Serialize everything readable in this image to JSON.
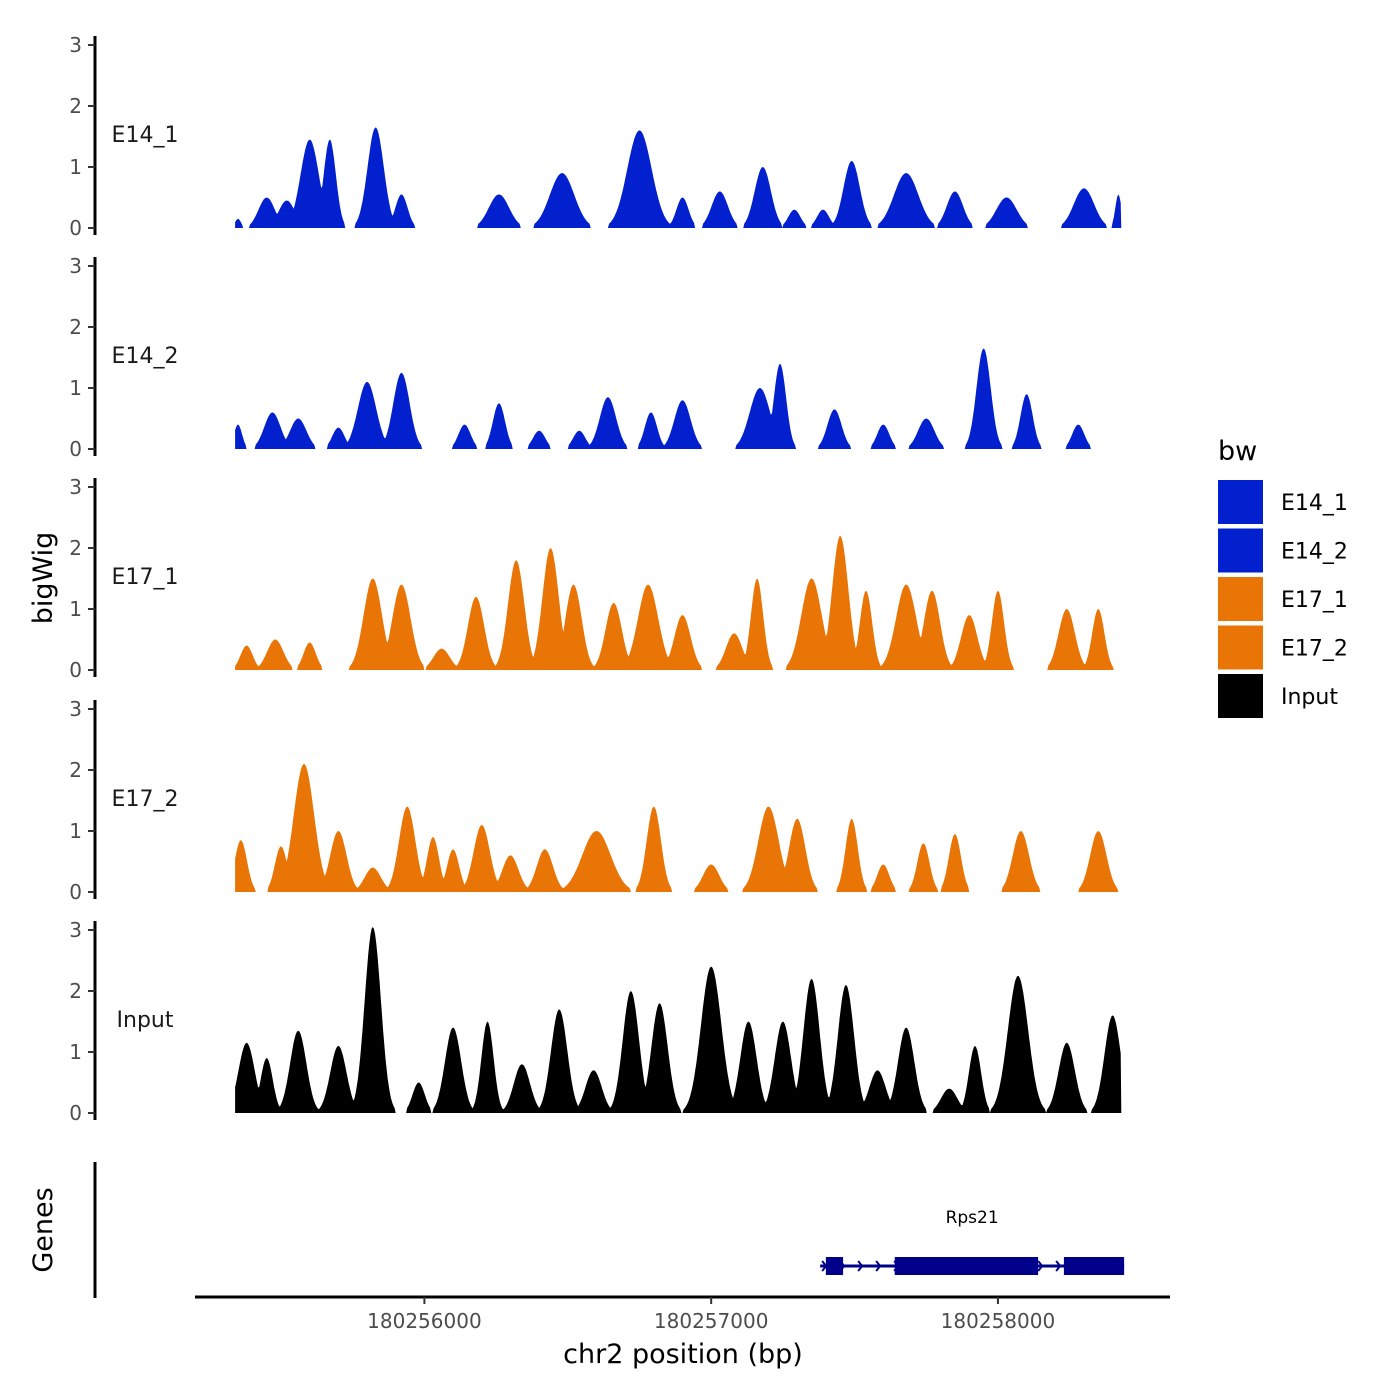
{
  "chart_data": {
    "type": "area",
    "title": "",
    "xlabel": "chr2 position (bp)",
    "ylabel": "bigWig",
    "genes_label": "Genes",
    "xlim": [
      180255200,
      180258600
    ],
    "xticks": [
      180256000,
      180257000,
      180258000
    ],
    "xtick_labels": [
      "180256000",
      "180257000",
      "180258000"
    ],
    "ylim": [
      0,
      3.1
    ],
    "yticks": [
      0,
      1,
      2,
      3
    ],
    "ytick_labels": [
      "0",
      "1",
      "2",
      "3"
    ],
    "region": [
      180255340,
      180258430
    ],
    "legend": {
      "title": "bw",
      "position": "right",
      "entries": [
        {
          "label": "E14_1",
          "color": "#0320CF"
        },
        {
          "label": "E14_2",
          "color": "#0320CF"
        },
        {
          "label": "E17_1",
          "color": "#E87506"
        },
        {
          "label": "E17_2",
          "color": "#E87506"
        },
        {
          "label": "Input",
          "color": "#000000"
        }
      ]
    },
    "series": [
      {
        "name": "E14_1",
        "color": "#0320CF",
        "peaks": [
          {
            "c": 180255350,
            "h": 0.15,
            "w": 15
          },
          {
            "c": 180255450,
            "h": 0.5,
            "w": 40
          },
          {
            "c": 180255520,
            "h": 0.45,
            "w": 40
          },
          {
            "c": 180255600,
            "h": 1.45,
            "w": 45
          },
          {
            "c": 180255670,
            "h": 1.45,
            "w": 30
          },
          {
            "c": 180255830,
            "h": 1.65,
            "w": 40
          },
          {
            "c": 180255920,
            "h": 0.55,
            "w": 30
          },
          {
            "c": 180256260,
            "h": 0.55,
            "w": 50
          },
          {
            "c": 180256480,
            "h": 0.9,
            "w": 60
          },
          {
            "c": 180256750,
            "h": 1.6,
            "w": 60
          },
          {
            "c": 180256900,
            "h": 0.5,
            "w": 30
          },
          {
            "c": 180257030,
            "h": 0.6,
            "w": 40
          },
          {
            "c": 180257180,
            "h": 1.0,
            "w": 40
          },
          {
            "c": 180257290,
            "h": 0.3,
            "w": 30
          },
          {
            "c": 180257390,
            "h": 0.3,
            "w": 30
          },
          {
            "c": 180257490,
            "h": 1.1,
            "w": 40
          },
          {
            "c": 180257680,
            "h": 0.9,
            "w": 60
          },
          {
            "c": 180257850,
            "h": 0.6,
            "w": 40
          },
          {
            "c": 180258030,
            "h": 0.5,
            "w": 50
          },
          {
            "c": 180258300,
            "h": 0.65,
            "w": 50
          },
          {
            "c": 180258420,
            "h": 0.55,
            "w": 15
          }
        ]
      },
      {
        "name": "E14_2",
        "color": "#0320CF",
        "peaks": [
          {
            "c": 180255350,
            "h": 0.4,
            "w": 20
          },
          {
            "c": 180255470,
            "h": 0.6,
            "w": 40
          },
          {
            "c": 180255560,
            "h": 0.5,
            "w": 40
          },
          {
            "c": 180255700,
            "h": 0.35,
            "w": 30
          },
          {
            "c": 180255800,
            "h": 1.1,
            "w": 45
          },
          {
            "c": 180255920,
            "h": 1.25,
            "w": 40
          },
          {
            "c": 180256140,
            "h": 0.4,
            "w": 30
          },
          {
            "c": 180256260,
            "h": 0.75,
            "w": 30
          },
          {
            "c": 180256400,
            "h": 0.3,
            "w": 30
          },
          {
            "c": 180256540,
            "h": 0.3,
            "w": 30
          },
          {
            "c": 180256640,
            "h": 0.85,
            "w": 40
          },
          {
            "c": 180256790,
            "h": 0.6,
            "w": 30
          },
          {
            "c": 180256900,
            "h": 0.8,
            "w": 40
          },
          {
            "c": 180257170,
            "h": 1.0,
            "w": 50
          },
          {
            "c": 180257240,
            "h": 1.4,
            "w": 30
          },
          {
            "c": 180257430,
            "h": 0.65,
            "w": 35
          },
          {
            "c": 180257600,
            "h": 0.4,
            "w": 30
          },
          {
            "c": 180257750,
            "h": 0.5,
            "w": 40
          },
          {
            "c": 180257950,
            "h": 1.65,
            "w": 35
          },
          {
            "c": 180258100,
            "h": 0.9,
            "w": 30
          },
          {
            "c": 180258280,
            "h": 0.4,
            "w": 30
          }
        ]
      },
      {
        "name": "E17_1",
        "color": "#E87506",
        "peaks": [
          {
            "c": 180255380,
            "h": 0.4,
            "w": 30
          },
          {
            "c": 180255480,
            "h": 0.5,
            "w": 40
          },
          {
            "c": 180255600,
            "h": 0.45,
            "w": 30
          },
          {
            "c": 180255820,
            "h": 1.5,
            "w": 45
          },
          {
            "c": 180255920,
            "h": 1.4,
            "w": 45
          },
          {
            "c": 180256060,
            "h": 0.35,
            "w": 40
          },
          {
            "c": 180256180,
            "h": 1.2,
            "w": 40
          },
          {
            "c": 180256320,
            "h": 1.8,
            "w": 40
          },
          {
            "c": 180256440,
            "h": 2.0,
            "w": 40
          },
          {
            "c": 180256520,
            "h": 1.4,
            "w": 40
          },
          {
            "c": 180256660,
            "h": 1.1,
            "w": 40
          },
          {
            "c": 180256780,
            "h": 1.4,
            "w": 50
          },
          {
            "c": 180256900,
            "h": 0.9,
            "w": 40
          },
          {
            "c": 180257080,
            "h": 0.6,
            "w": 40
          },
          {
            "c": 180257160,
            "h": 1.5,
            "w": 30
          },
          {
            "c": 180257350,
            "h": 1.5,
            "w": 50
          },
          {
            "c": 180257450,
            "h": 2.2,
            "w": 40
          },
          {
            "c": 180257540,
            "h": 1.3,
            "w": 30
          },
          {
            "c": 180257680,
            "h": 1.4,
            "w": 50
          },
          {
            "c": 180257770,
            "h": 1.3,
            "w": 40
          },
          {
            "c": 180257900,
            "h": 0.9,
            "w": 40
          },
          {
            "c": 180258000,
            "h": 1.3,
            "w": 30
          },
          {
            "c": 180258240,
            "h": 1.0,
            "w": 40
          },
          {
            "c": 180258350,
            "h": 1.0,
            "w": 30
          }
        ]
      },
      {
        "name": "E17_2",
        "color": "#E87506",
        "peaks": [
          {
            "c": 180255360,
            "h": 0.85,
            "w": 30
          },
          {
            "c": 180255500,
            "h": 0.75,
            "w": 30
          },
          {
            "c": 180255580,
            "h": 2.1,
            "w": 50
          },
          {
            "c": 180255700,
            "h": 1.0,
            "w": 40
          },
          {
            "c": 180255820,
            "h": 0.4,
            "w": 40
          },
          {
            "c": 180255940,
            "h": 1.4,
            "w": 40
          },
          {
            "c": 180256030,
            "h": 0.9,
            "w": 30
          },
          {
            "c": 180256100,
            "h": 0.7,
            "w": 30
          },
          {
            "c": 180256200,
            "h": 1.1,
            "w": 40
          },
          {
            "c": 180256300,
            "h": 0.6,
            "w": 40
          },
          {
            "c": 180256420,
            "h": 0.7,
            "w": 40
          },
          {
            "c": 180256600,
            "h": 1.0,
            "w": 70
          },
          {
            "c": 180256800,
            "h": 1.4,
            "w": 35
          },
          {
            "c": 180257000,
            "h": 0.45,
            "w": 40
          },
          {
            "c": 180257200,
            "h": 1.4,
            "w": 50
          },
          {
            "c": 180257300,
            "h": 1.2,
            "w": 40
          },
          {
            "c": 180257490,
            "h": 1.2,
            "w": 30
          },
          {
            "c": 180257600,
            "h": 0.45,
            "w": 30
          },
          {
            "c": 180257740,
            "h": 0.8,
            "w": 30
          },
          {
            "c": 180257850,
            "h": 0.95,
            "w": 30
          },
          {
            "c": 180258080,
            "h": 1.0,
            "w": 40
          },
          {
            "c": 180258350,
            "h": 1.0,
            "w": 40
          }
        ]
      },
      {
        "name": "Input",
        "color": "#000000",
        "peaks": [
          {
            "c": 180255380,
            "h": 1.15,
            "w": 40
          },
          {
            "c": 180255450,
            "h": 0.9,
            "w": 30
          },
          {
            "c": 180255560,
            "h": 1.35,
            "w": 40
          },
          {
            "c": 180255700,
            "h": 1.1,
            "w": 40
          },
          {
            "c": 180255820,
            "h": 3.05,
            "w": 40
          },
          {
            "c": 180255980,
            "h": 0.5,
            "w": 30
          },
          {
            "c": 180256100,
            "h": 1.4,
            "w": 40
          },
          {
            "c": 180256220,
            "h": 1.5,
            "w": 30
          },
          {
            "c": 180256340,
            "h": 0.8,
            "w": 40
          },
          {
            "c": 180256470,
            "h": 1.7,
            "w": 40
          },
          {
            "c": 180256590,
            "h": 0.7,
            "w": 40
          },
          {
            "c": 180256720,
            "h": 2.0,
            "w": 40
          },
          {
            "c": 180256820,
            "h": 1.8,
            "w": 40
          },
          {
            "c": 180257000,
            "h": 2.4,
            "w": 50
          },
          {
            "c": 180257130,
            "h": 1.5,
            "w": 40
          },
          {
            "c": 180257250,
            "h": 1.5,
            "w": 40
          },
          {
            "c": 180257350,
            "h": 2.2,
            "w": 40
          },
          {
            "c": 180257470,
            "h": 2.1,
            "w": 40
          },
          {
            "c": 180257580,
            "h": 0.7,
            "w": 40
          },
          {
            "c": 180257680,
            "h": 1.4,
            "w": 40
          },
          {
            "c": 180257830,
            "h": 0.4,
            "w": 40
          },
          {
            "c": 180257920,
            "h": 1.1,
            "w": 30
          },
          {
            "c": 180258070,
            "h": 2.25,
            "w": 50
          },
          {
            "c": 180258240,
            "h": 1.15,
            "w": 40
          },
          {
            "c": 180258400,
            "h": 1.6,
            "w": 40
          }
        ]
      }
    ],
    "genes": [
      {
        "name": "Rps21",
        "color": "#00008B",
        "start": 180257380,
        "end": 180258440,
        "label_pos": 180257910,
        "exons": [
          [
            180257400,
            180257460
          ],
          [
            180257640,
            180258140
          ],
          [
            180258230,
            180258440
          ]
        ]
      }
    ]
  }
}
